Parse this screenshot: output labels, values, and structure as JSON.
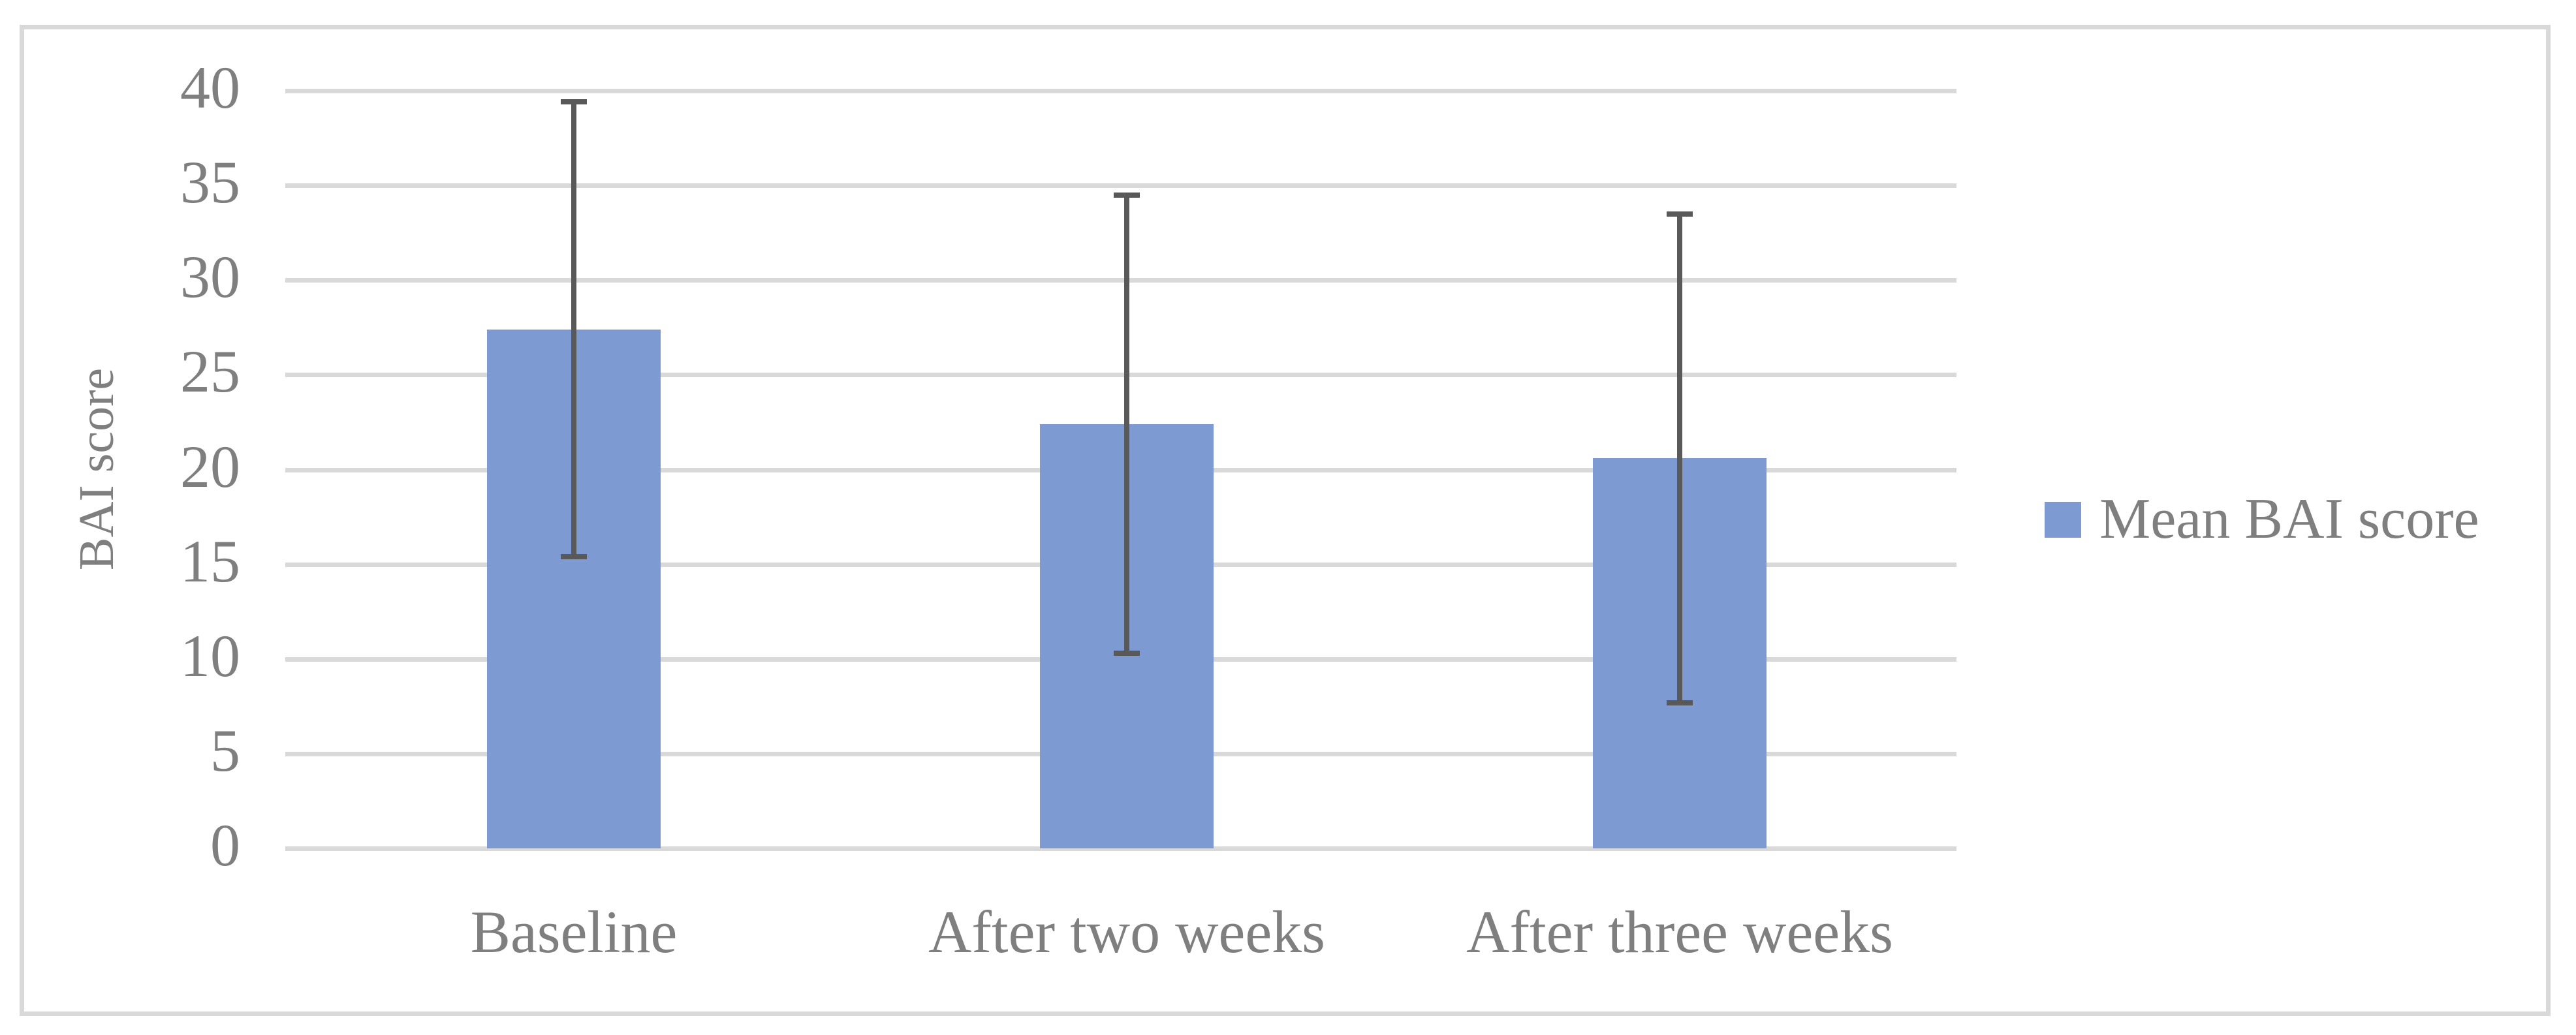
{
  "chart_data": {
    "type": "bar",
    "title": "",
    "categories": [
      "Baseline",
      "After two weeks",
      "After three weeks"
    ],
    "series": [
      {
        "name": "Mean BAI score",
        "values": [
          27.4,
          22.4,
          20.6
        ],
        "error_upper": [
          39.4,
          34.5,
          33.5
        ],
        "error_lower": [
          15.4,
          10.3,
          7.7
        ]
      }
    ],
    "xlabel": "",
    "ylabel": "BAI score",
    "ylim": [
      0,
      40
    ],
    "yticks": [
      0,
      5,
      10,
      15,
      20,
      25,
      30,
      35,
      40
    ],
    "grid": true,
    "legend": [
      {
        "label": "Mean BAI score",
        "swatch_icon": "blue-square"
      }
    ],
    "legend_position": "right",
    "colors": {
      "bar": "#7D9BD2",
      "error_bar": "#595959",
      "gridline": "#D9D9D9",
      "axis_text": "#7F7F7F",
      "frame_border": "#D9D9D9",
      "background": "#FFFFFF"
    }
  }
}
